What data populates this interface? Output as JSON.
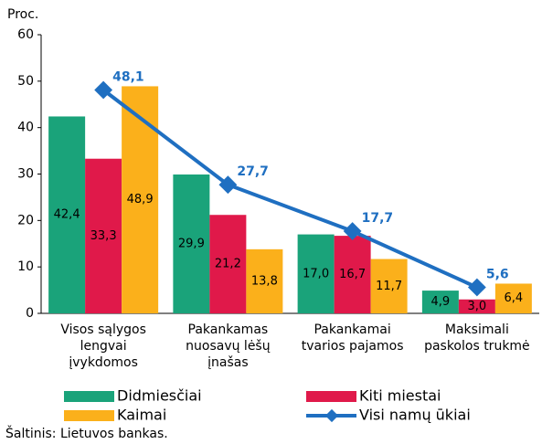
{
  "chart_data": {
    "type": "bar",
    "y_label": "Proc.",
    "categories": [
      [
        "Visos sąlygos",
        "lengvai",
        "įvykdomos"
      ],
      [
        "Pakankamas",
        "nuosavų lėšų",
        "įnašas"
      ],
      [
        "Pakankamai",
        "tvarios pajamos"
      ],
      [
        "Maksimali",
        "paskolos trukmė"
      ]
    ],
    "series": [
      {
        "name": "Didmiesčiai",
        "color": "#1aa37a",
        "values": [
          42.4,
          29.9,
          17.0,
          4.9
        ],
        "value_labels": [
          "42,4",
          "29,9",
          "17,0",
          "4,9"
        ],
        "label_color": "#000000"
      },
      {
        "name": "Kiti miestai",
        "color": "#e0194a",
        "values": [
          33.3,
          21.2,
          16.7,
          3.0
        ],
        "value_labels": [
          "33,3",
          "21,2",
          "16,7",
          "3,0"
        ],
        "label_color": "#ffffff"
      },
      {
        "name": "Kaimai",
        "color": "#fbb01b",
        "values": [
          48.9,
          13.8,
          11.7,
          6.4
        ],
        "value_labels": [
          "48,9",
          "13,8",
          "11,7",
          "6,4"
        ],
        "label_color": "#000000"
      },
      {
        "name": "Visi namų ūkiai",
        "type": "line",
        "color": "#1f6fc1",
        "values": [
          48.1,
          27.7,
          17.7,
          5.6
        ],
        "value_labels": [
          "48,1",
          "27,7",
          "17,7",
          "5,6"
        ]
      }
    ],
    "ylim": [
      0,
      60
    ],
    "yticks": [
      0,
      10,
      20,
      30,
      40,
      50,
      60
    ],
    "grid": false,
    "source": "Šaltinis: Lietuvos bankas."
  }
}
